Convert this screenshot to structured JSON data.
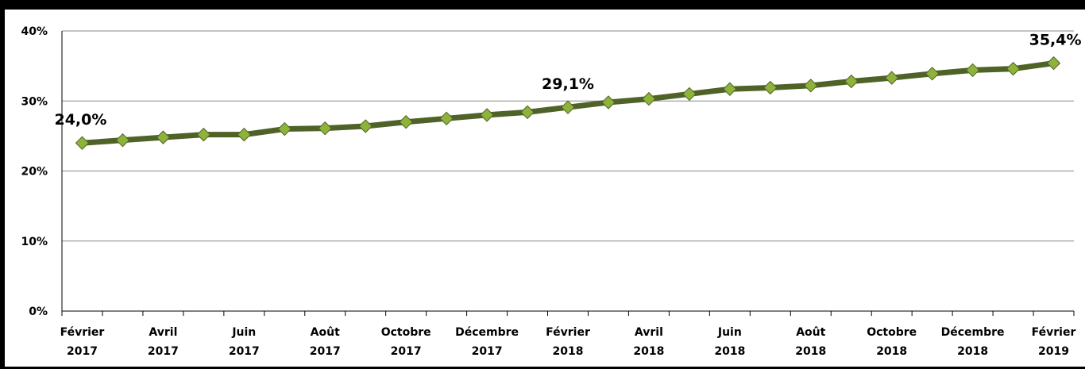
{
  "chart_data": {
    "type": "line",
    "categories": [
      "Février 2017",
      null,
      "Avril 2017",
      null,
      "Juin 2017",
      null,
      "Août 2017",
      null,
      "Octobre 2017",
      null,
      "Décembre 2017",
      null,
      "Février 2018",
      null,
      "Avril 2018",
      null,
      "Juin 2018",
      null,
      "Août 2018",
      null,
      "Octobre 2018",
      null,
      "Décembre 2018",
      null,
      "Février 2019"
    ],
    "series": [
      {
        "color": "#4f6228",
        "marker_color": "#8db33a",
        "values": [
          24.0,
          24.4,
          24.8,
          25.2,
          25.2,
          26.0,
          26.1,
          26.4,
          27.0,
          27.5,
          28.0,
          28.4,
          29.1,
          29.8,
          30.3,
          31.0,
          31.7,
          31.9,
          32.2,
          32.8,
          33.3,
          33.9,
          34.4,
          34.6,
          35.4
        ],
        "value_labels": [
          "24,0%",
          null,
          null,
          null,
          null,
          null,
          null,
          null,
          null,
          null,
          null,
          null,
          "29,1%",
          null,
          null,
          null,
          null,
          null,
          null,
          null,
          null,
          null,
          null,
          null,
          "35,4%"
        ]
      }
    ],
    "ylim": [
      0,
      40
    ],
    "yticks": [
      {
        "value": 0,
        "label": "0%"
      },
      {
        "value": 10,
        "label": "10%"
      },
      {
        "value": 20,
        "label": "20%"
      },
      {
        "value": 30,
        "label": "30%"
      },
      {
        "value": 40,
        "label": "40%"
      }
    ],
    "grid": true
  }
}
